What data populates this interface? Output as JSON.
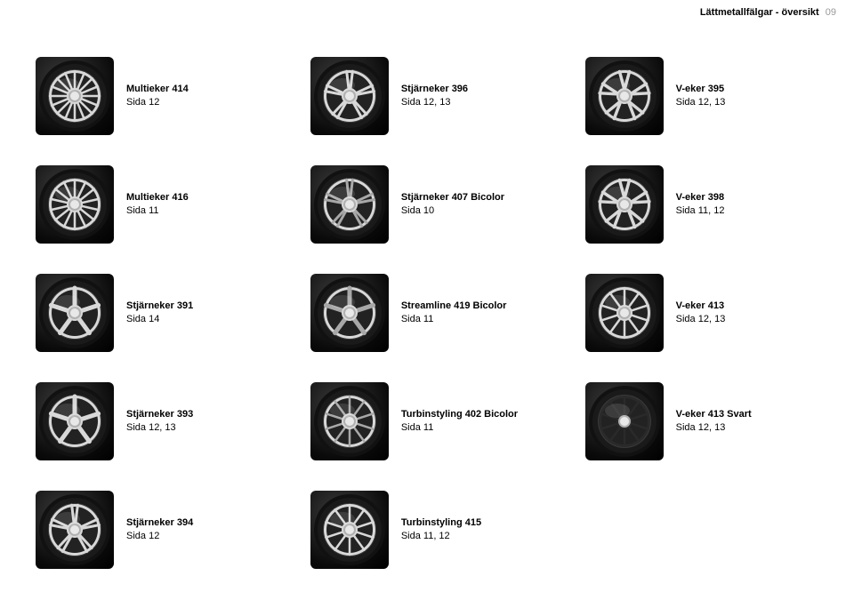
{
  "header": {
    "title": "Lättmetallfälgar - översikt",
    "page_number": "09"
  },
  "wheel_style": {
    "rim_light": "#d8d8d8",
    "rim_mid": "#a8a8a8",
    "rim_dark": "#3a3a3a",
    "hub": "#b0b0b0",
    "bg_dark": "#0a0a0a",
    "svart_rim": "#2a2a2a"
  },
  "rows": [
    [
      {
        "name": "Multieker 414",
        "page": "Sida 12",
        "spokes": 16
      },
      {
        "name": "Stjärneker 396",
        "page": "Sida 12, 13",
        "spokes": 5,
        "double": true
      },
      {
        "name": "V-eker 395",
        "page": "Sida 12, 13",
        "spokes": 5,
        "v": true
      }
    ],
    [
      {
        "name": "Multieker 416",
        "page": "Sida 11",
        "spokes": 14
      },
      {
        "name": "Stjärneker 407 Bicolor",
        "page": "Sida 10",
        "spokes": 5,
        "double": true,
        "bicolor": true
      },
      {
        "name": "V-eker 398",
        "page": "Sida 11, 12",
        "spokes": 5,
        "v": true
      }
    ],
    [
      {
        "name": "Stjärneker 391",
        "page": "Sida 14",
        "spokes": 5
      },
      {
        "name": "Streamline 419 Bicolor",
        "page": "Sida 11",
        "spokes": 5,
        "bicolor": true
      },
      {
        "name": "V-eker 413",
        "page": "Sida 12, 13",
        "spokes": 10
      }
    ],
    [
      {
        "name": "Stjärneker 393",
        "page": "Sida 12, 13",
        "spokes": 5
      },
      {
        "name": "Turbinstyling 402 Bicolor",
        "page": "Sida 11",
        "spokes": 10,
        "bicolor": true
      },
      {
        "name": "V-eker 413 Svart",
        "page": "Sida 12, 13",
        "spokes": 10,
        "svart": true
      }
    ],
    [
      {
        "name": "Stjärneker 394",
        "page": "Sida 12",
        "spokes": 5,
        "double": true
      },
      {
        "name": "Turbinstyling 415",
        "page": "Sida 11, 12",
        "spokes": 10
      },
      null
    ]
  ]
}
